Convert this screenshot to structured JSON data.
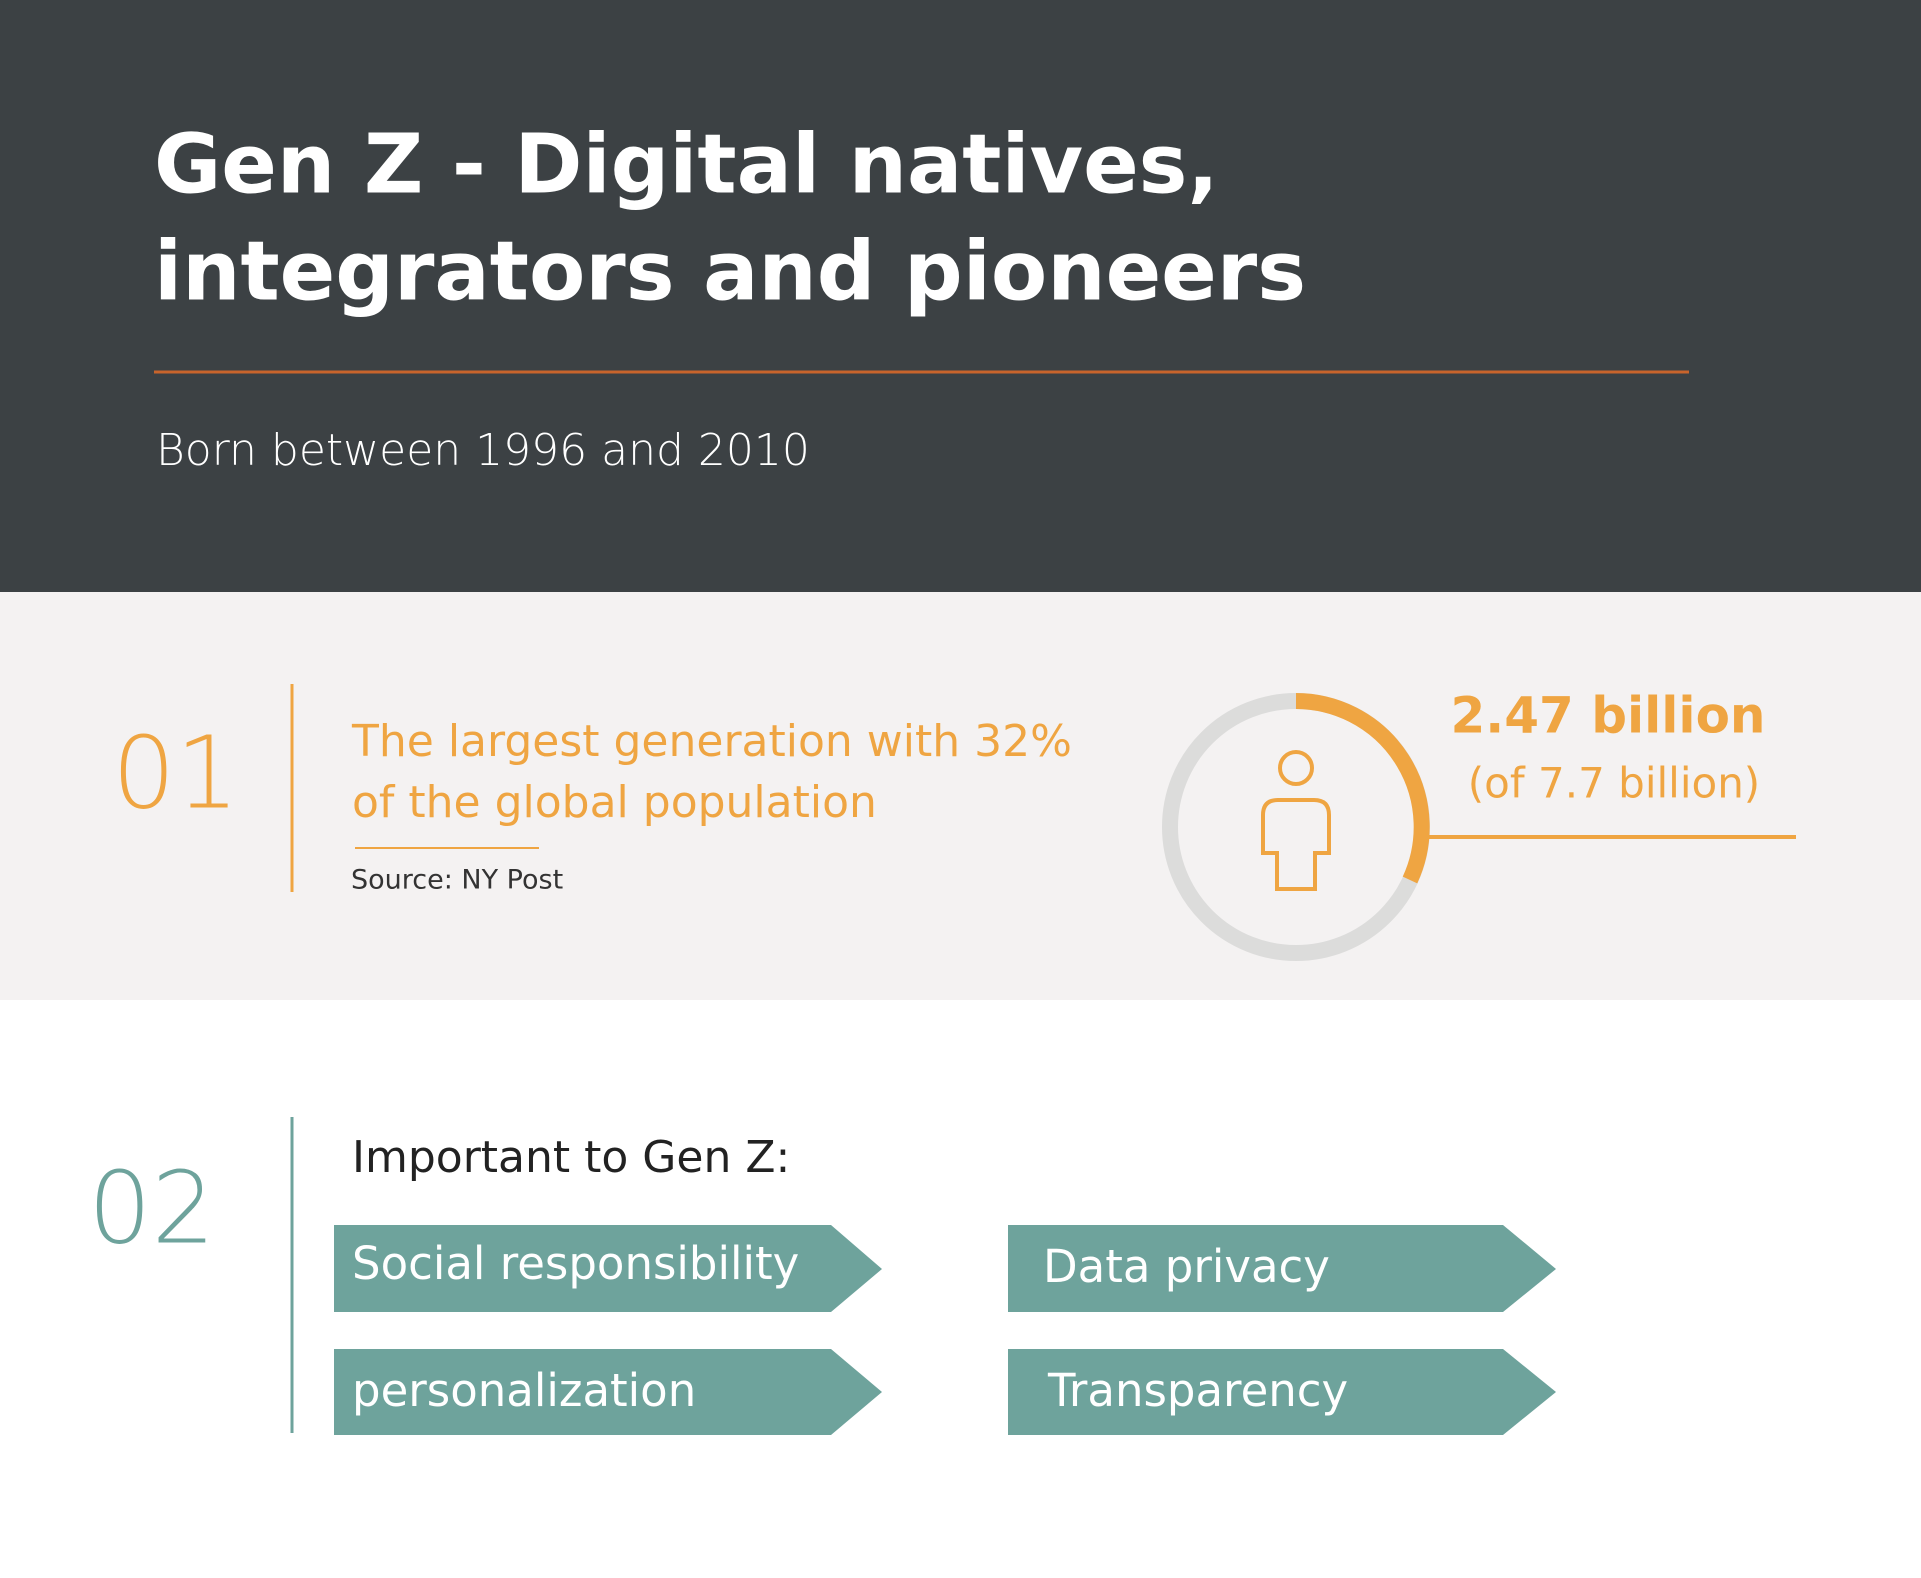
{
  "header": {
    "title_lines": [
      "Gen Z - Digital natives,",
      "integrators and pioneers"
    ],
    "subtitle": "Born between 1996 and 2010"
  },
  "section1": {
    "number": "01",
    "text_lines": [
      "The largest generation with 32%",
      "of the global population"
    ],
    "source": "Source: NY Post",
    "stat": "2.47 billion",
    "stat_note": "(of 7.7 billion)"
  },
  "section2": {
    "number": "02",
    "heading": "Important to Gen Z:",
    "items": [
      "Social responsibility",
      "Data privacy",
      "personalization",
      "Transparency"
    ]
  }
}
